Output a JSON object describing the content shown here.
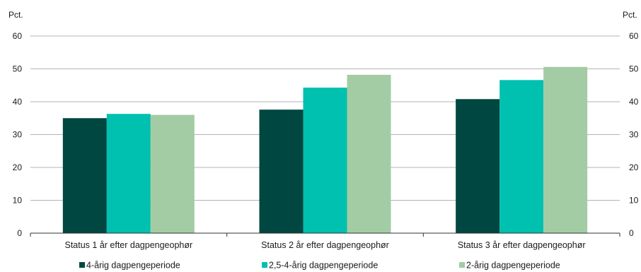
{
  "chart_data": {
    "type": "bar",
    "title": "",
    "ylabel_left": "Pct.",
    "ylabel_right": "Pct.",
    "ylim": [
      0,
      60
    ],
    "yticks": [
      0,
      10,
      20,
      30,
      40,
      50,
      60
    ],
    "grid": true,
    "legend_position": "bottom",
    "categories": [
      "Status 1 år efter dagpengeophør",
      "Status 2 år efter dagpengeophør",
      "Status 3 år efter dagpengeophør"
    ],
    "series": [
      {
        "name": "4-årig dagpengeperiode",
        "color": "#004741",
        "values": [
          35.0,
          37.6,
          40.8
        ]
      },
      {
        "name": "2,5-4-årig dagpengeperiode",
        "color": "#00c0b0",
        "values": [
          36.3,
          44.3,
          46.6
        ]
      },
      {
        "name": "2-årig dagpengeperiode",
        "color": "#a3cca4",
        "values": [
          36.0,
          48.2,
          50.6
        ]
      }
    ]
  }
}
